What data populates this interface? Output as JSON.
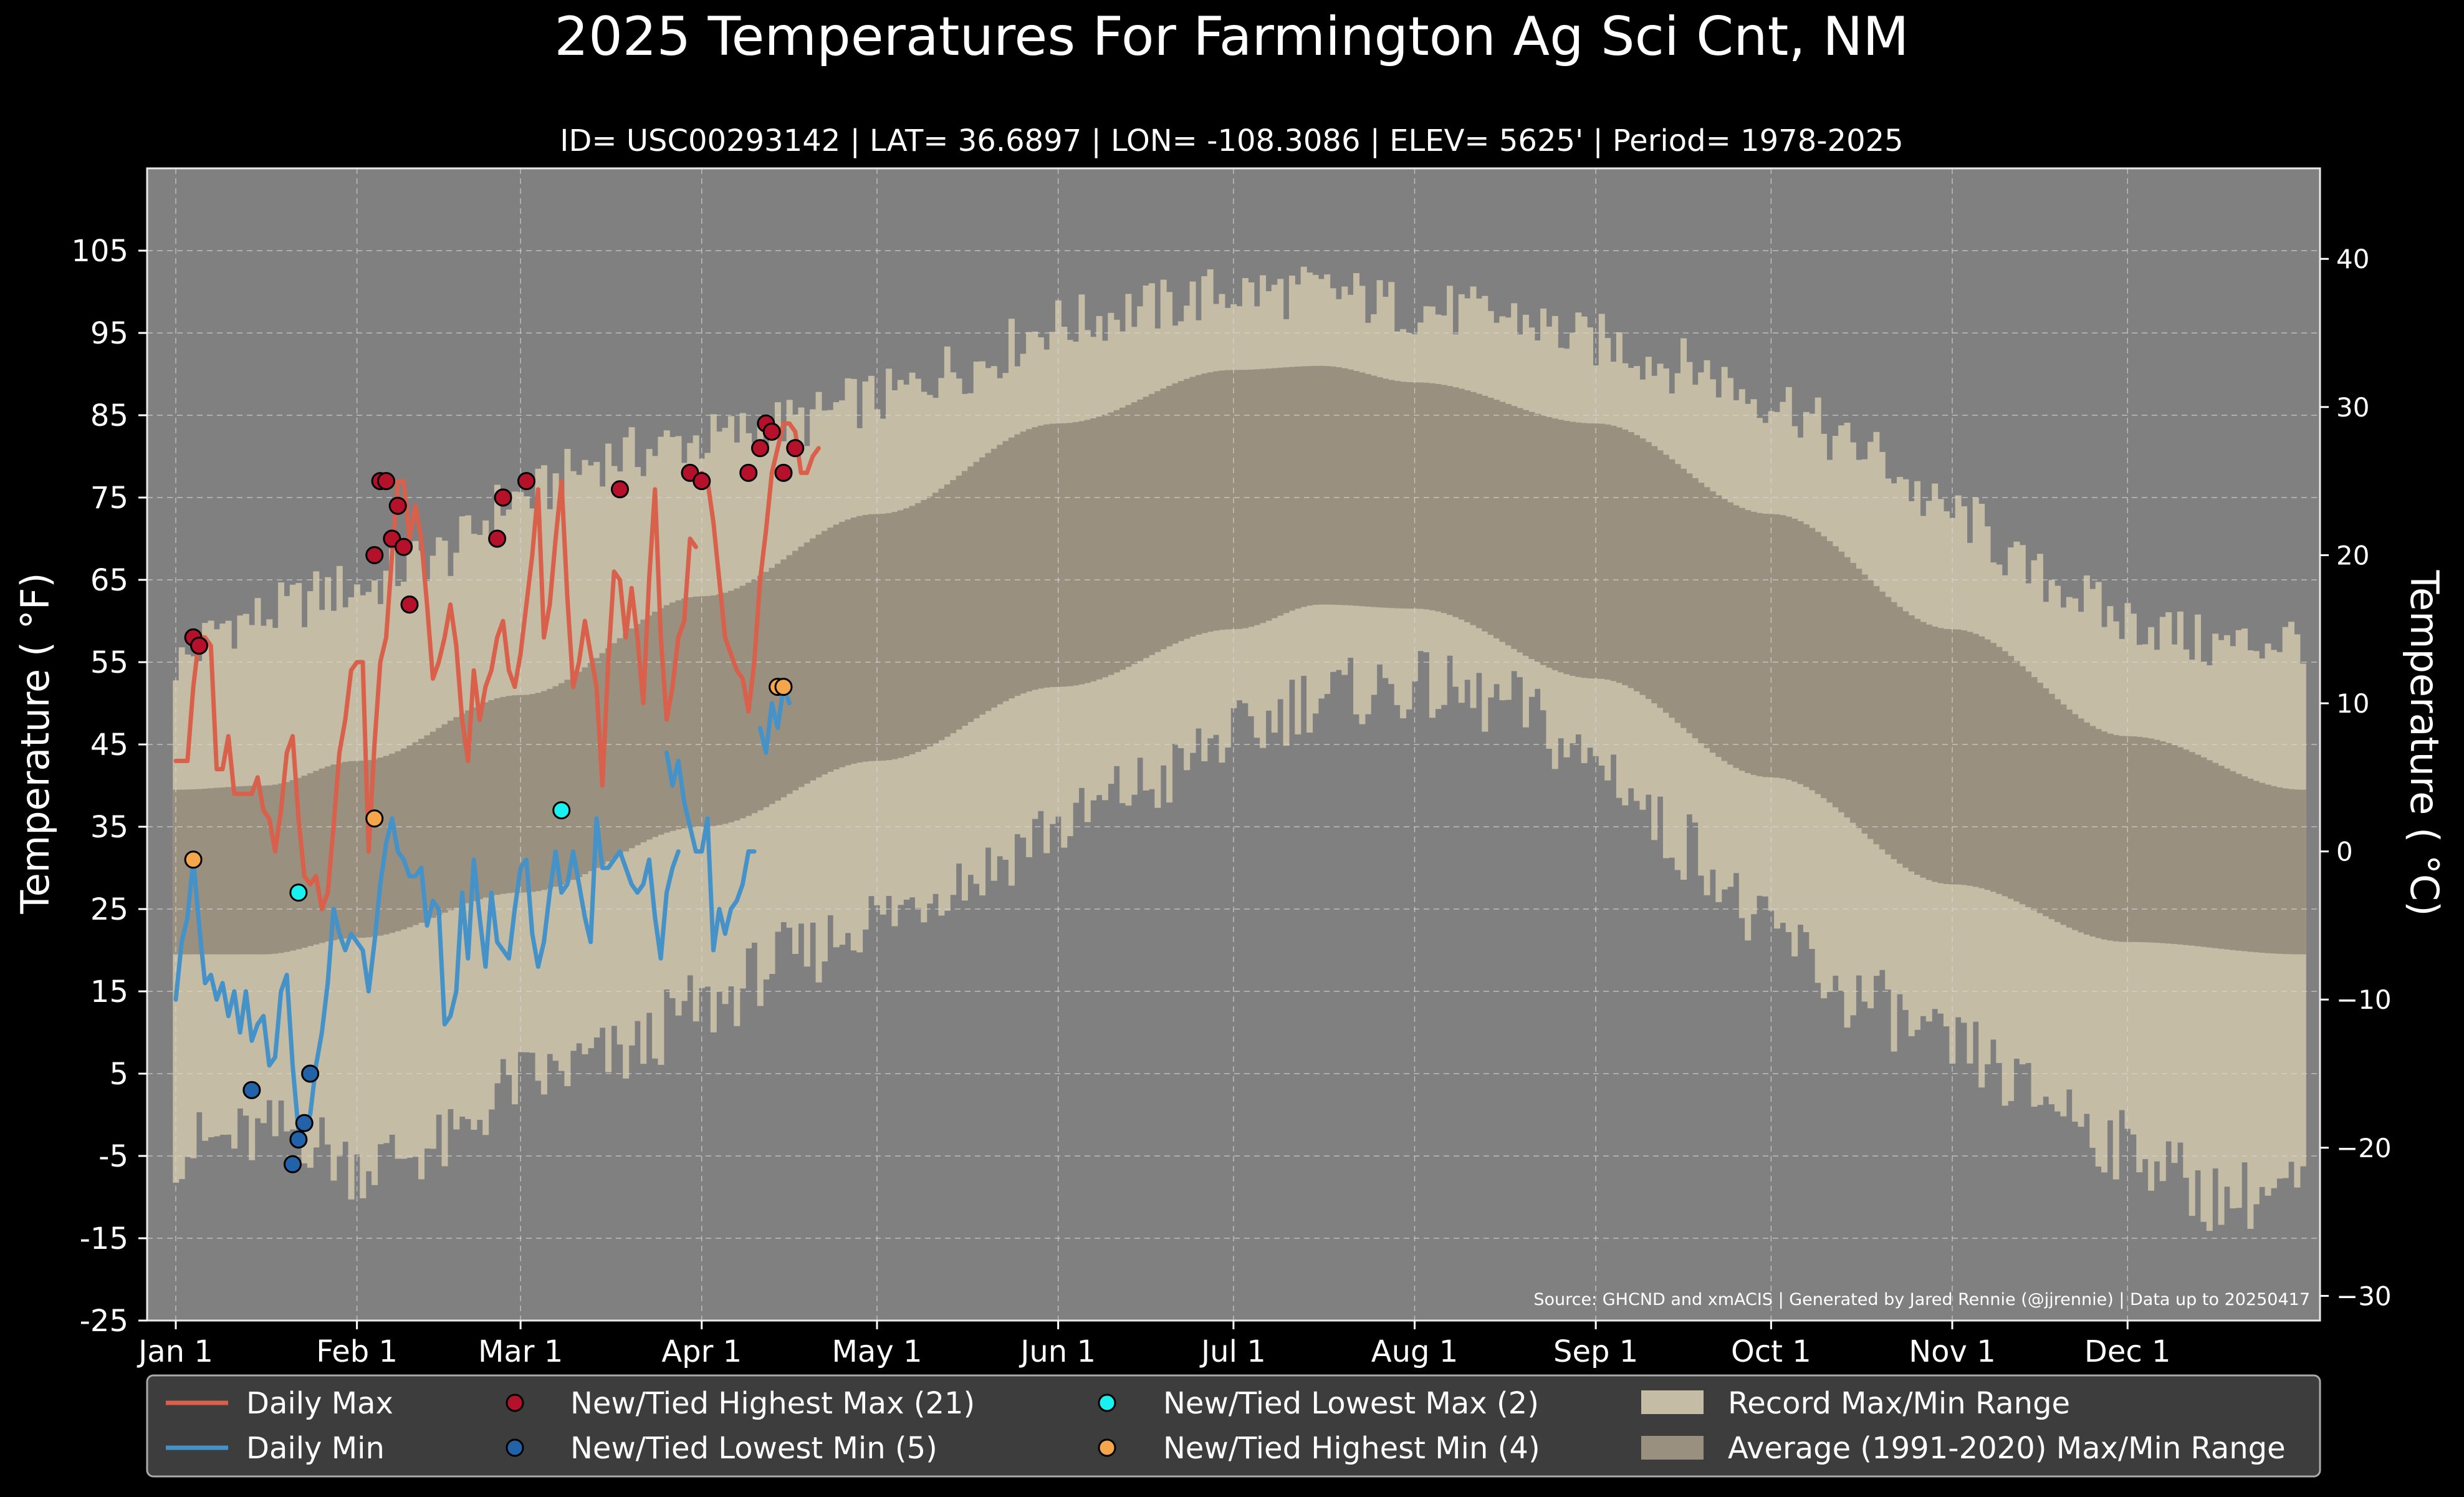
{
  "chart_data": {
    "type": "line",
    "title": "2025 Temperatures For Farmington Ag Sci Cnt, NM",
    "subtitle": "ID= USC00293142 | LAT= 36.6897 | LON= -108.3086 | ELEV= 5625' | Period= 1978-2025",
    "ylabel_left": "Temperature ( °F)",
    "ylabel_right": "Temperature ( °C)",
    "ylim_f": [
      -25,
      115
    ],
    "yticks_f": [
      "105",
      "95",
      "85",
      "75",
      "65",
      "55",
      "45",
      "35",
      "25",
      "15",
      "5",
      "-5",
      "-15",
      "-25"
    ],
    "yticks_c": [
      "40",
      "30",
      "20",
      "10",
      "0",
      "−10",
      "−20",
      "−30"
    ],
    "xticks": [
      "Jan 1",
      "Feb 1",
      "Mar 1",
      "Apr 1",
      "May 1",
      "Jun 1",
      "Jul 1",
      "Aug 1",
      "Sep 1",
      "Oct 1",
      "Nov 1",
      "Dec 1"
    ],
    "source": "Source: GHCND and xmACIS | Generated by Jared Rennie (@jjrennie) | Data up to 20250417",
    "grid": true,
    "legend_position": "bottom",
    "legend": {
      "daily_max": "Daily Max",
      "daily_min": "Daily Min",
      "highest_max": "New/Tied Highest Max (21)",
      "lowest_min": "New/Tied Lowest Min (5)",
      "lowest_max": "New/Tied Lowest Max (2)",
      "highest_min": "New/Tied Highest Min (4)",
      "record_range": "Record Max/Min Range",
      "normal_range": "Average (1991-2020) Max/Min Range"
    },
    "colors": {
      "background": "#000000",
      "plot_bg": "#808080",
      "record_band": "#c5bca5",
      "normal_band": "#999080",
      "daily_max": "#d9604a",
      "daily_min": "#4592c8",
      "highest_max": "#b5112b",
      "lowest_min": "#2262a8",
      "lowest_max": "#19f0f0",
      "highest_min": "#f5a54a"
    },
    "normal_max_anchors": [
      [
        0,
        39.5
      ],
      [
        15,
        40
      ],
      [
        31,
        43
      ],
      [
        59,
        51
      ],
      [
        90,
        63
      ],
      [
        120,
        73
      ],
      [
        151,
        84
      ],
      [
        181,
        90.5
      ],
      [
        196,
        91
      ],
      [
        212,
        89
      ],
      [
        243,
        84
      ],
      [
        273,
        73
      ],
      [
        304,
        59
      ],
      [
        334,
        46
      ],
      [
        364,
        39.5
      ]
    ],
    "normal_min_anchors": [
      [
        0,
        19.5
      ],
      [
        15,
        19.5
      ],
      [
        31,
        21.5
      ],
      [
        59,
        27
      ],
      [
        90,
        35
      ],
      [
        120,
        43
      ],
      [
        151,
        52
      ],
      [
        181,
        59
      ],
      [
        196,
        62
      ],
      [
        212,
        61.5
      ],
      [
        243,
        53
      ],
      [
        273,
        41
      ],
      [
        304,
        28
      ],
      [
        334,
        21
      ],
      [
        364,
        19.5
      ]
    ],
    "record_max_anchors": [
      [
        0,
        55
      ],
      [
        10,
        60
      ],
      [
        31,
        64
      ],
      [
        45,
        68
      ],
      [
        59,
        75
      ],
      [
        75,
        80
      ],
      [
        90,
        82
      ],
      [
        105,
        84
      ],
      [
        120,
        87
      ],
      [
        135,
        91
      ],
      [
        151,
        96
      ],
      [
        166,
        98
      ],
      [
        181,
        100
      ],
      [
        196,
        100
      ],
      [
        212,
        98
      ],
      [
        227,
        97
      ],
      [
        243,
        94
      ],
      [
        258,
        91
      ],
      [
        273,
        87
      ],
      [
        288,
        81
      ],
      [
        304,
        73
      ],
      [
        320,
        65
      ],
      [
        334,
        60
      ],
      [
        350,
        57
      ],
      [
        364,
        58
      ]
    ],
    "record_min_anchors": [
      [
        0,
        -4
      ],
      [
        10,
        -3
      ],
      [
        20,
        -2
      ],
      [
        31,
        -6
      ],
      [
        45,
        -4
      ],
      [
        59,
        4
      ],
      [
        75,
        7
      ],
      [
        90,
        13
      ],
      [
        105,
        19
      ],
      [
        120,
        24
      ],
      [
        135,
        29
      ],
      [
        151,
        35
      ],
      [
        166,
        40
      ],
      [
        181,
        46
      ],
      [
        196,
        51
      ],
      [
        212,
        52
      ],
      [
        227,
        50
      ],
      [
        243,
        43
      ],
      [
        258,
        33
      ],
      [
        273,
        22
      ],
      [
        288,
        14
      ],
      [
        304,
        8
      ],
      [
        320,
        2
      ],
      [
        334,
        -4
      ],
      [
        350,
        -10
      ],
      [
        364,
        -9
      ]
    ],
    "daily_max_segments": [
      [
        [
          0,
          43
        ],
        [
          1,
          43
        ],
        [
          2,
          43
        ],
        [
          3,
          52
        ],
        [
          4,
          58
        ],
        [
          5,
          58
        ],
        [
          6,
          57
        ],
        [
          7,
          42
        ],
        [
          8,
          42
        ],
        [
          9,
          46
        ],
        [
          10,
          39
        ],
        [
          11,
          39
        ],
        [
          12,
          39
        ],
        [
          13,
          39
        ],
        [
          14,
          41
        ],
        [
          15,
          37
        ],
        [
          16,
          36
        ],
        [
          17,
          32
        ],
        [
          18,
          37
        ],
        [
          19,
          44
        ],
        [
          20,
          46
        ],
        [
          21,
          36
        ],
        [
          22,
          29
        ],
        [
          23,
          28
        ],
        [
          24,
          29
        ],
        [
          25,
          25
        ],
        [
          26,
          27
        ],
        [
          27,
          35
        ],
        [
          28,
          44
        ],
        [
          29,
          48
        ],
        [
          30,
          54
        ],
        [
          31,
          55
        ],
        [
          32,
          55
        ],
        [
          33,
          32
        ],
        [
          34,
          45
        ],
        [
          35,
          55
        ],
        [
          36,
          58
        ],
        [
          37,
          68
        ],
        [
          38,
          77
        ],
        [
          39,
          77
        ],
        [
          40,
          70
        ],
        [
          41,
          74
        ],
        [
          42,
          70
        ],
        [
          43,
          62
        ],
        [
          44,
          53
        ],
        [
          45,
          55
        ],
        [
          46,
          58
        ],
        [
          47,
          62
        ],
        [
          48,
          57
        ],
        [
          49,
          48
        ],
        [
          50,
          43
        ],
        [
          51,
          54
        ],
        [
          52,
          48
        ],
        [
          53,
          52
        ],
        [
          54,
          54
        ],
        [
          55,
          58
        ],
        [
          56,
          60
        ],
        [
          57,
          54
        ],
        [
          58,
          52
        ],
        [
          59,
          56
        ],
        [
          60,
          62
        ],
        [
          61,
          68
        ],
        [
          62,
          76
        ],
        [
          63,
          58
        ],
        [
          64,
          62
        ],
        [
          65,
          70
        ],
        [
          66,
          77
        ],
        [
          67,
          63
        ],
        [
          68,
          52
        ],
        [
          69,
          55
        ],
        [
          70,
          60
        ],
        [
          71,
          56
        ],
        [
          72,
          52
        ],
        [
          73,
          40
        ],
        [
          74,
          55
        ],
        [
          75,
          66
        ],
        [
          76,
          65
        ],
        [
          77,
          58
        ],
        [
          78,
          64
        ],
        [
          79,
          58
        ],
        [
          80,
          50
        ],
        [
          81,
          65
        ],
        [
          82,
          76
        ],
        [
          83,
          58
        ],
        [
          84,
          48
        ],
        [
          85,
          52
        ],
        [
          86,
          58
        ],
        [
          87,
          60
        ],
        [
          88,
          70
        ],
        [
          89,
          69
        ]
      ],
      [
        [
          89,
          77
        ],
        [
          90,
          78
        ],
        [
          91,
          77
        ],
        [
          92,
          72
        ],
        [
          93,
          65
        ],
        [
          94,
          58
        ],
        [
          95,
          56
        ],
        [
          96,
          54
        ],
        [
          97,
          53
        ],
        [
          98,
          49
        ],
        [
          99,
          55
        ],
        [
          100,
          65
        ],
        [
          101,
          71
        ],
        [
          102,
          78
        ]
      ],
      [
        [
          102,
          78
        ],
        [
          103,
          81
        ],
        [
          104,
          84
        ],
        [
          105,
          84
        ],
        [
          106,
          83
        ],
        [
          107,
          78
        ],
        [
          108,
          78
        ],
        [
          109,
          80
        ],
        [
          110,
          81
        ]
      ]
    ],
    "daily_min_segments": [
      [
        [
          0,
          14
        ],
        [
          1,
          21
        ],
        [
          2,
          24
        ],
        [
          3,
          31
        ],
        [
          4,
          23
        ],
        [
          5,
          16
        ],
        [
          6,
          17
        ],
        [
          7,
          14
        ],
        [
          8,
          16
        ],
        [
          9,
          12
        ],
        [
          10,
          15
        ],
        [
          11,
          10
        ],
        [
          12,
          15
        ],
        [
          13,
          9
        ],
        [
          14,
          11
        ],
        [
          15,
          12
        ],
        [
          16,
          6
        ],
        [
          17,
          7
        ],
        [
          18,
          15
        ],
        [
          19,
          17
        ],
        [
          20,
          6
        ],
        [
          21,
          -2
        ],
        [
          22,
          -1
        ],
        [
          23,
          0
        ],
        [
          24,
          6
        ],
        [
          25,
          10
        ],
        [
          26,
          16
        ],
        [
          27,
          25
        ],
        [
          28,
          22
        ],
        [
          29,
          20
        ],
        [
          30,
          22
        ],
        [
          31,
          21
        ],
        [
          32,
          20
        ],
        [
          33,
          15
        ],
        [
          34,
          21
        ],
        [
          35,
          28
        ],
        [
          36,
          33
        ],
        [
          37,
          36
        ],
        [
          38,
          32
        ],
        [
          39,
          31
        ],
        [
          40,
          29
        ],
        [
          41,
          29
        ],
        [
          42,
          30
        ],
        [
          43,
          23
        ],
        [
          44,
          26
        ],
        [
          45,
          25
        ],
        [
          46,
          11
        ],
        [
          47,
          12
        ],
        [
          48,
          15
        ],
        [
          49,
          27
        ],
        [
          50,
          19
        ],
        [
          51,
          31
        ],
        [
          52,
          24
        ],
        [
          53,
          18
        ],
        [
          54,
          27
        ],
        [
          55,
          21
        ],
        [
          56,
          20
        ],
        [
          57,
          19
        ],
        [
          58,
          25
        ],
        [
          59,
          30
        ],
        [
          60,
          31
        ],
        [
          61,
          22
        ],
        [
          62,
          18
        ],
        [
          63,
          21
        ],
        [
          64,
          27
        ],
        [
          65,
          32
        ],
        [
          66,
          27
        ],
        [
          67,
          28
        ],
        [
          68,
          32
        ],
        [
          69,
          28
        ],
        [
          70,
          24
        ],
        [
          71,
          21
        ],
        [
          72,
          36
        ],
        [
          73,
          30
        ],
        [
          74,
          30
        ],
        [
          75,
          31
        ],
        [
          76,
          32
        ],
        [
          77,
          30
        ],
        [
          78,
          28
        ],
        [
          79,
          27
        ],
        [
          80,
          28
        ],
        [
          81,
          31
        ],
        [
          82,
          24
        ],
        [
          83,
          19
        ],
        [
          84,
          27
        ],
        [
          85,
          30
        ],
        [
          86,
          32
        ]
      ],
      [
        [
          84,
          44
        ],
        [
          85,
          40
        ],
        [
          86,
          43
        ],
        [
          87,
          38
        ],
        [
          88,
          35
        ],
        [
          89,
          32
        ],
        [
          90,
          32
        ],
        [
          91,
          36
        ],
        [
          92,
          20
        ],
        [
          93,
          25
        ],
        [
          94,
          22
        ],
        [
          95,
          25
        ],
        [
          96,
          26
        ],
        [
          97,
          28
        ],
        [
          98,
          32
        ],
        [
          99,
          32
        ]
      ],
      [
        [
          100,
          47
        ],
        [
          101,
          44
        ],
        [
          102,
          50
        ],
        [
          103,
          47
        ],
        [
          104,
          52
        ],
        [
          105,
          50
        ]
      ]
    ],
    "new_tied_highest_max": [
      [
        3,
        58
      ],
      [
        4,
        57
      ],
      [
        34,
        68
      ],
      [
        35,
        77
      ],
      [
        36,
        77
      ],
      [
        37,
        70
      ],
      [
        38,
        74
      ],
      [
        39,
        69
      ],
      [
        40,
        62
      ],
      [
        55,
        70
      ],
      [
        56,
        75
      ],
      [
        60,
        77
      ],
      [
        76,
        76
      ],
      [
        88,
        78
      ],
      [
        90,
        77
      ],
      [
        98,
        78
      ],
      [
        100,
        81
      ],
      [
        101,
        84
      ],
      [
        102,
        83
      ],
      [
        104,
        78
      ],
      [
        106,
        81
      ]
    ],
    "new_tied_lowest_min": [
      [
        13,
        3
      ],
      [
        20,
        -6
      ],
      [
        21,
        -3
      ],
      [
        22,
        -1
      ],
      [
        23,
        5
      ]
    ],
    "new_tied_lowest_max": [
      [
        21,
        27
      ],
      [
        66,
        37
      ]
    ],
    "new_tied_highest_min": [
      [
        3,
        31
      ],
      [
        34,
        36
      ],
      [
        103,
        52
      ],
      [
        104,
        52
      ]
    ]
  }
}
